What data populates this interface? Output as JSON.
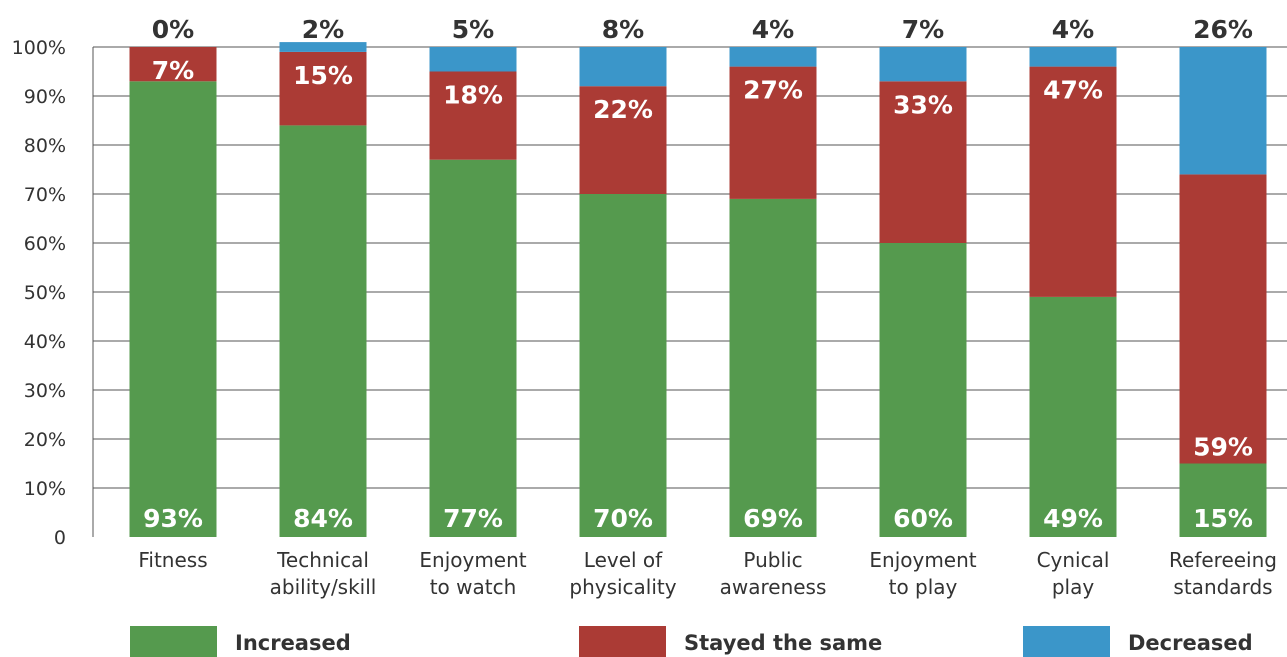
{
  "chart_data": {
    "type": "bar",
    "stacked": true,
    "categories": [
      [
        "Fitness"
      ],
      [
        "Technical",
        "ability/skill"
      ],
      [
        "Enjoyment",
        "to watch"
      ],
      [
        "Level of",
        "physicality"
      ],
      [
        "Public",
        "awareness"
      ],
      [
        "Enjoyment",
        "to play"
      ],
      [
        "Cynical",
        "play"
      ],
      [
        "Refereeing",
        "standards"
      ]
    ],
    "series": [
      {
        "name": "Increased",
        "color": "#559a4e",
        "values": [
          93,
          84,
          77,
          70,
          69,
          60,
          49,
          15
        ],
        "labels": [
          "93%",
          "84%",
          "77%",
          "70%",
          "69%",
          "60%",
          "49%",
          "15%"
        ]
      },
      {
        "name": "Stayed the same",
        "color": "#ab3b35",
        "values": [
          7,
          15,
          18,
          22,
          27,
          33,
          47,
          59
        ],
        "labels": [
          "7%",
          "15%",
          "18%",
          "22%",
          "27%",
          "33%",
          "47%",
          "59%"
        ]
      },
      {
        "name": "Decreased",
        "color": "#3b96c9",
        "values": [
          0,
          2,
          5,
          8,
          4,
          7,
          4,
          26
        ],
        "labels": [
          "0%",
          "2%",
          "5%",
          "8%",
          "4%",
          "7%",
          "4%",
          "26%"
        ]
      }
    ],
    "y_ticks": [
      "0",
      "10%",
      "20%",
      "30%",
      "40%",
      "50%",
      "60%",
      "70%",
      "80%",
      "90%",
      "100%"
    ],
    "ylim": [
      0,
      100
    ],
    "grid": true,
    "legend_position": "bottom"
  },
  "legend": {
    "increased": "Increased",
    "stayed": "Stayed the same",
    "decreased": "Decreased",
    "colors": {
      "increased": "#559a4e",
      "stayed": "#ab3b35",
      "decreased": "#3b96c9"
    }
  }
}
